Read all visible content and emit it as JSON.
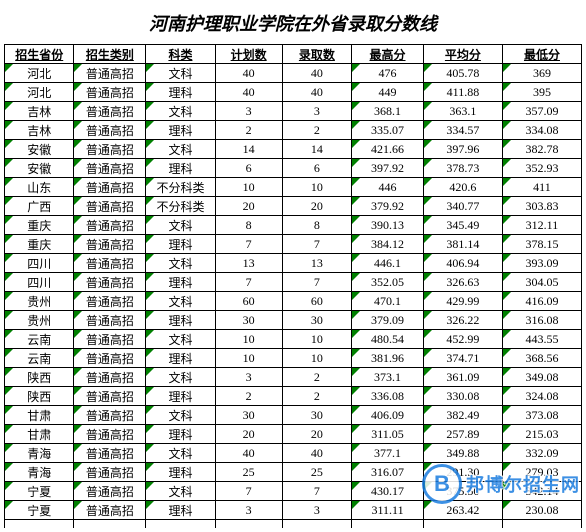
{
  "title": "河南护理职业学院在外省录取分数线",
  "columns": [
    "招生省份",
    "招生类别",
    "科类",
    "计划数",
    "录取数",
    "最高分",
    "平均分",
    "最低分"
  ],
  "rows": [
    [
      "河北",
      "普通高招",
      "文科",
      "40",
      "40",
      "476",
      "405.78",
      "369"
    ],
    [
      "河北",
      "普通高招",
      "理科",
      "40",
      "40",
      "449",
      "411.88",
      "395"
    ],
    [
      "吉林",
      "普通高招",
      "文科",
      "3",
      "3",
      "368.1",
      "363.1",
      "357.09"
    ],
    [
      "吉林",
      "普通高招",
      "理科",
      "2",
      "2",
      "335.07",
      "334.57",
      "334.08"
    ],
    [
      "安徽",
      "普通高招",
      "文科",
      "14",
      "14",
      "421.66",
      "397.96",
      "382.78"
    ],
    [
      "安徽",
      "普通高招",
      "理科",
      "6",
      "6",
      "397.92",
      "378.73",
      "352.93"
    ],
    [
      "山东",
      "普通高招",
      "不分科类",
      "10",
      "10",
      "446",
      "420.6",
      "411"
    ],
    [
      "广西",
      "普通高招",
      "不分科类",
      "20",
      "20",
      "379.92",
      "340.77",
      "303.83"
    ],
    [
      "重庆",
      "普通高招",
      "文科",
      "8",
      "8",
      "390.13",
      "345.49",
      "312.11"
    ],
    [
      "重庆",
      "普通高招",
      "理科",
      "7",
      "7",
      "384.12",
      "381.14",
      "378.15"
    ],
    [
      "四川",
      "普通高招",
      "文科",
      "13",
      "13",
      "446.1",
      "406.94",
      "393.09"
    ],
    [
      "四川",
      "普通高招",
      "理科",
      "7",
      "7",
      "352.05",
      "326.63",
      "304.05"
    ],
    [
      "贵州",
      "普通高招",
      "文科",
      "60",
      "60",
      "470.1",
      "429.99",
      "416.09"
    ],
    [
      "贵州",
      "普通高招",
      "理科",
      "30",
      "30",
      "379.09",
      "326.22",
      "316.08"
    ],
    [
      "云南",
      "普通高招",
      "文科",
      "10",
      "10",
      "480.54",
      "452.99",
      "443.55"
    ],
    [
      "云南",
      "普通高招",
      "理科",
      "10",
      "10",
      "381.96",
      "374.71",
      "368.56"
    ],
    [
      "陕西",
      "普通高招",
      "文科",
      "3",
      "2",
      "373.1",
      "361.09",
      "349.08"
    ],
    [
      "陕西",
      "普通高招",
      "理科",
      "2",
      "2",
      "336.08",
      "330.08",
      "324.08"
    ],
    [
      "甘肃",
      "普通高招",
      "文科",
      "30",
      "30",
      "406.09",
      "382.49",
      "373.08"
    ],
    [
      "甘肃",
      "普通高招",
      "理科",
      "20",
      "20",
      "311.05",
      "257.89",
      "215.03"
    ],
    [
      "青海",
      "普通高招",
      "文科",
      "40",
      "40",
      "377.1",
      "349.88",
      "332.09"
    ],
    [
      "青海",
      "普通高招",
      "理科",
      "25",
      "25",
      "316.07",
      "291.30",
      "279.03"
    ],
    [
      "宁夏",
      "普通高招",
      "文科",
      "7",
      "7",
      "430.17",
      "375.50",
      "342.14"
    ],
    [
      "宁夏",
      "普通高招",
      "理科",
      "3",
      "3",
      "311.11",
      "263.42",
      "230.08"
    ]
  ],
  "watermark": {
    "badge": "B",
    "text": "邦博尔招生网"
  },
  "greenCornerCols": [
    0,
    1,
    2,
    5,
    6,
    7
  ],
  "colWidths": [
    "c0",
    "c1",
    "c2",
    "c3",
    "c4",
    "c5",
    "c6",
    "c7"
  ]
}
